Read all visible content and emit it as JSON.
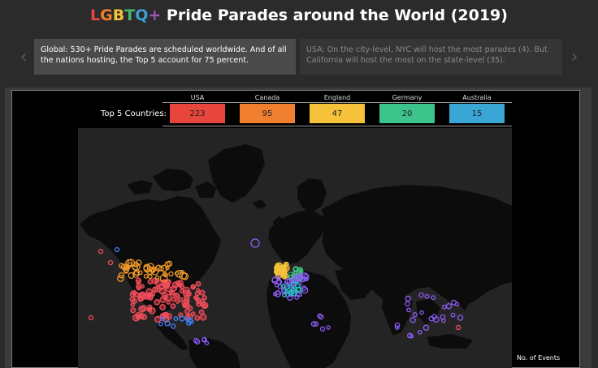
{
  "title": {
    "segments": [
      {
        "text": "L",
        "color": "#e8453c"
      },
      {
        "text": "G",
        "color": "#f07f2f"
      },
      {
        "text": "B",
        "color": "#f6c23a"
      },
      {
        "text": "T",
        "color": "#49b672"
      },
      {
        "text": "Q",
        "color": "#3aa0d6"
      },
      {
        "text": "+",
        "color": "#9b59b6"
      }
    ],
    "rest": " Pride Parades around the World (2019)"
  },
  "story": {
    "prev_icon": "chevron-left-icon",
    "next_icon": "chevron-right-icon",
    "prev_glyph": "‹",
    "next_glyph": "›",
    "points": [
      {
        "text": "Global: 530+ Pride Parades are scheduled worldwide. And of all the nations hosting, the Top 5 account for 75 percent."
      },
      {
        "text": "USA: On the city-level, NYC will host the most parades (4). But California will host the most on the state-level (35)."
      }
    ]
  },
  "top5": {
    "label": "Top 5 Countries:",
    "countries": [
      {
        "name": "USA",
        "value": "223",
        "color": "#e8453c"
      },
      {
        "name": "Canada",
        "value": "95",
        "color": "#f07f2f"
      },
      {
        "name": "England",
        "value": "47",
        "color": "#f6c23a"
      },
      {
        "name": "Germany",
        "value": "20",
        "color": "#3cc48c"
      },
      {
        "name": "Australia",
        "value": "15",
        "color": "#3aa6d6"
      }
    ]
  },
  "legend": {
    "title": "No. of Events"
  },
  "colors": {
    "usa": "#f24d5a",
    "canada": "#f39a2a",
    "england": "#f6c23a",
    "germany": "#3fbf7f",
    "other": "#8b5cf6",
    "other2": "#3b82f6",
    "teal": "#22c1c3"
  }
}
